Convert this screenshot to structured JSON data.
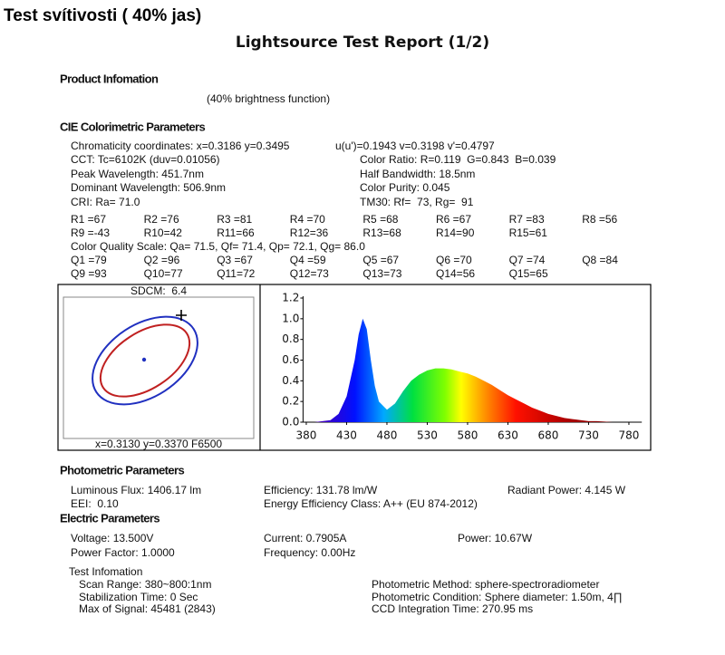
{
  "header": {
    "title": "Test svítivosti ( 40% jas)",
    "report_title": "Lightsource Test Report (1/2)"
  },
  "product": {
    "heading": "Product Infomation",
    "note": "(40% brightness function)"
  },
  "cie": {
    "heading": "CIE Colorimetric Parameters",
    "rows": [
      [
        "Chromaticity coordinates: x=0.3186 y=0.3495",
        "u(u')=0.1943 v=0.3198 v'=0.4797"
      ],
      [
        "CCT: Tc=6102K (duv=0.01056)",
        "Color Ratio: R=0.119  G=0.843  B=0.039"
      ],
      [
        "Peak Wavelength: 451.7nm",
        "Half Bandwidth: 18.5nm"
      ],
      [
        "Dominant Wavelength: 506.9nm",
        "Color Purity: 0.045"
      ],
      [
        "CRI: Ra= 71.0",
        "TM30: Rf=  73, Rg=  91"
      ]
    ],
    "r_values": [
      [
        "R1 =67",
        "R2 =76",
        "R3 =81",
        "R4 =70",
        "R5 =68",
        "R6 =67",
        "R7 =83",
        "R8 =56"
      ],
      [
        "R9 =-43",
        "R10=42",
        "R11=66",
        "R12=36",
        "R13=68",
        "R14=90",
        "R15=61"
      ]
    ],
    "cqs": "Color Quality Scale: Qa= 71.5, Qf= 71.4, Qp= 72.1, Qg= 86.0",
    "q_values": [
      [
        "Q1 =79",
        "Q2 =96",
        "Q3 =67",
        "Q4 =59",
        "Q5 =67",
        "Q6 =70",
        "Q7 =74",
        "Q8 =84"
      ],
      [
        "Q9 =93",
        "Q10=77",
        "Q11=72",
        "Q12=73",
        "Q13=73",
        "Q14=56",
        "Q15=65"
      ]
    ]
  },
  "sdcm": {
    "label": "SDCM:  6.4",
    "coords": "x=0.3130 y=0.3370 F6500"
  },
  "chart_data": {
    "type": "area",
    "x": [
      380,
      390,
      400,
      410,
      420,
      430,
      440,
      445,
      450,
      455,
      460,
      465,
      470,
      480,
      490,
      500,
      510,
      520,
      530,
      540,
      550,
      560,
      570,
      580,
      590,
      600,
      610,
      620,
      630,
      640,
      650,
      660,
      670,
      680,
      690,
      700,
      710,
      720,
      730,
      740,
      750,
      760,
      770,
      780
    ],
    "values": [
      0,
      0,
      0.01,
      0.02,
      0.08,
      0.25,
      0.6,
      0.85,
      1.0,
      0.9,
      0.6,
      0.35,
      0.2,
      0.12,
      0.18,
      0.3,
      0.4,
      0.46,
      0.5,
      0.52,
      0.52,
      0.51,
      0.49,
      0.47,
      0.44,
      0.4,
      0.36,
      0.31,
      0.26,
      0.22,
      0.18,
      0.14,
      0.11,
      0.08,
      0.06,
      0.04,
      0.03,
      0.02,
      0.01,
      0.01,
      0.005,
      0,
      0,
      0
    ],
    "xlim": [
      376,
      796
    ],
    "ylim": [
      0,
      1.2
    ],
    "xticks": [
      380,
      430,
      480,
      530,
      580,
      630,
      680,
      730,
      780
    ],
    "yticks": [
      {
        "value": 0,
        "label": "0.0"
      },
      0.2,
      0.4,
      0.6,
      0.8,
      {
        "value": 1,
        "label": "1.0"
      },
      1.2
    ]
  },
  "photometric": {
    "heading": "Photometric Parameters",
    "rows": [
      [
        "Luminous Flux: 1406.17 lm",
        "Efficiency: 131.78 lm/W",
        "Radiant Power: 4.145 W"
      ],
      [
        "EEI:  0.10",
        "Energy Efficiency Class: A++ (EU 874-2012)"
      ]
    ]
  },
  "electric": {
    "heading": "Electric Parameters",
    "rows": [
      [
        "Voltage: 13.500V",
        "Current: 0.7905A",
        "Power: 10.67W"
      ],
      [
        "Power Factor: 1.0000",
        "Frequency: 0.00Hz"
      ]
    ]
  },
  "test_info": {
    "heading": "Test Infomation",
    "left": [
      "Scan Range: 380~800:1nm",
      "Stabilization Time: 0 Sec",
      "Max of Signal: 45481 (2843)"
    ],
    "right": [
      "Photometric Method: sphere-spectroradiometer",
      "Photometric Condition: Sphere diameter: 1.50m, 4∏",
      "CCD Integration Time: 270.95 ms"
    ]
  }
}
